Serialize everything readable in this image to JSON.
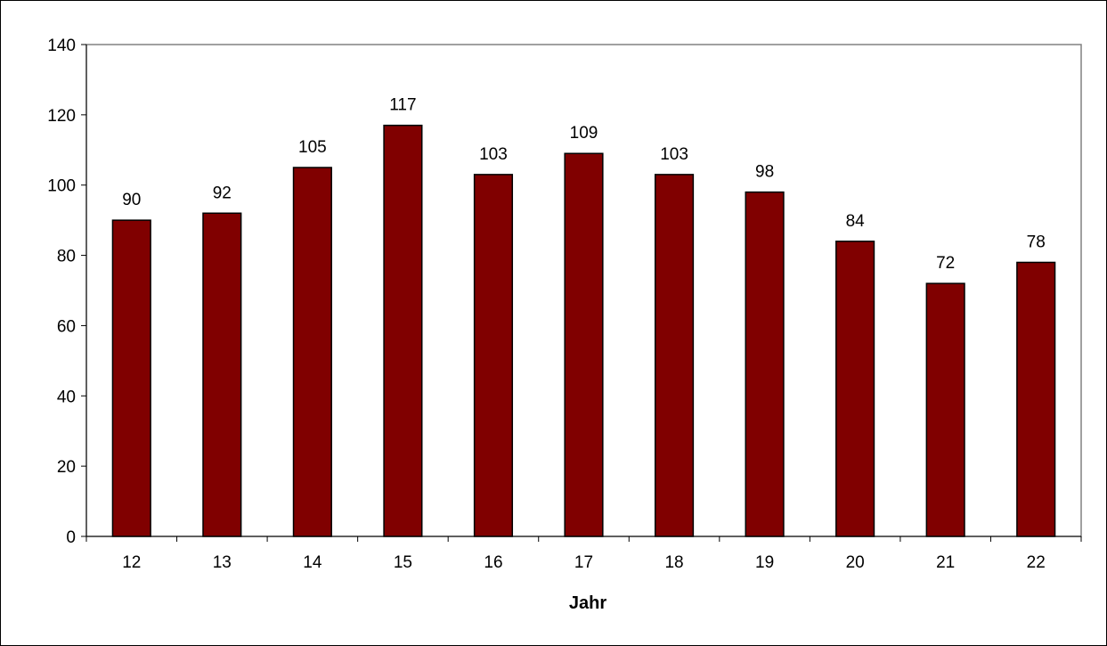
{
  "chart_data": {
    "type": "bar",
    "title": "",
    "xlabel": "Jahr",
    "ylabel": "",
    "categories": [
      "12",
      "13",
      "14",
      "15",
      "16",
      "17",
      "18",
      "19",
      "20",
      "21",
      "22"
    ],
    "series": [
      {
        "values": [
          90,
          92,
          105,
          117,
          103,
          109,
          103,
          98,
          84,
          72,
          78
        ]
      }
    ],
    "ylim": [
      0,
      140
    ],
    "yticks": [
      0,
      20,
      40,
      60,
      80,
      100,
      120,
      140
    ],
    "data_labels": true,
    "grid": false,
    "legend": "none",
    "bar_color": "#800000",
    "bar_edge_color": "#000000"
  }
}
